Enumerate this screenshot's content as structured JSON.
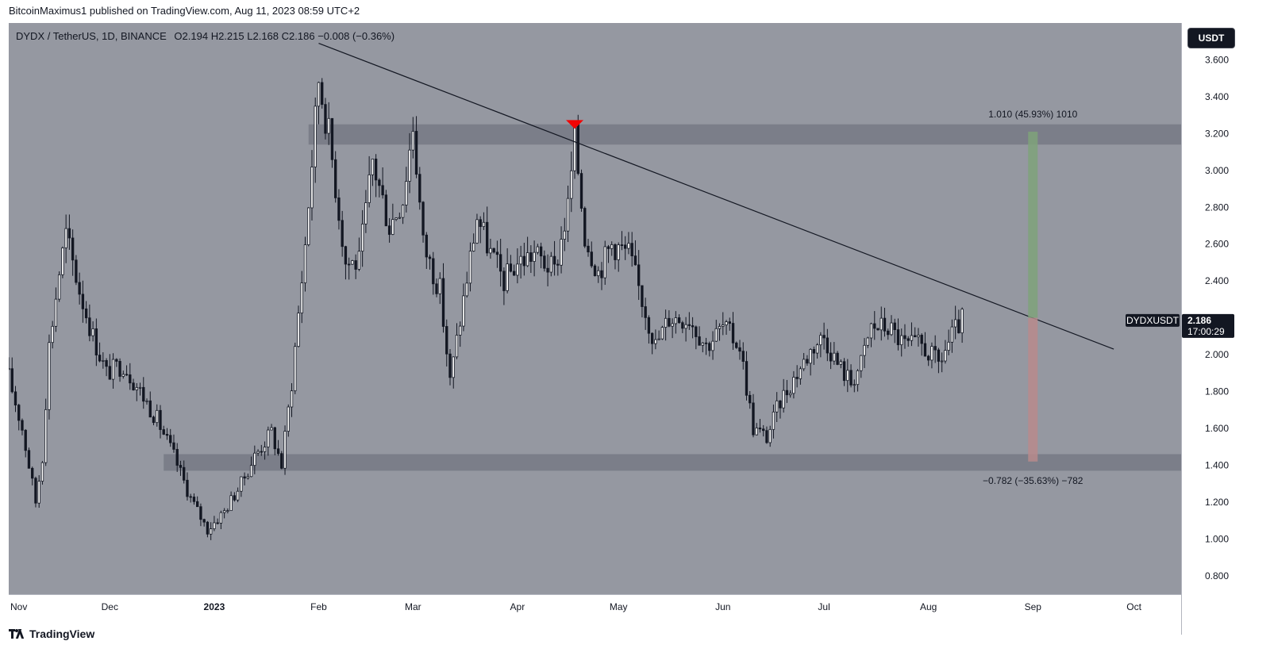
{
  "header": {
    "published": "BitcoinMaximus1 published on TradingView.com, Aug 11, 2023 08:59 UTC+2"
  },
  "legend": {
    "symbol": "DYDX / TetherUS, 1D, BINANCE",
    "open_label": "O",
    "open": "2.194",
    "high_label": "H",
    "high": "2.215",
    "low_label": "L",
    "low": "2.168",
    "close_label": "C",
    "close": "2.186",
    "change": "−0.008 (−0.36%)"
  },
  "currency_button": "USDT",
  "price_label": {
    "symbol": "DYDXUSDT",
    "price": "2.186",
    "countdown": "17:00:29"
  },
  "colors": {
    "plot_bg": "#9598a1",
    "zone": "#787b86",
    "candle": "#131722",
    "long_target": "#7fa27a",
    "short_target": "#b98a8c",
    "marker": "#f20505"
  },
  "footer": {
    "brand": "TradingView",
    "logo_icon": "tradingview-logo-icon"
  },
  "chart_data": {
    "type": "candlestick",
    "timeframe": "1D",
    "x_axis_ticks": [
      "Nov",
      "Dec",
      "2023",
      "Feb",
      "Mar",
      "Apr",
      "May",
      "Jun",
      "Jul",
      "Aug",
      "Sep",
      "Oct"
    ],
    "y_axis_ticks": [
      "3.600",
      "3.400",
      "3.200",
      "3.000",
      "2.800",
      "2.600",
      "2.400",
      "2.200",
      "2.000",
      "1.800",
      "1.600",
      "1.400",
      "1.200",
      "1.000",
      "0.800"
    ],
    "y_range": [
      0.7,
      3.8
    ],
    "x_range": [
      "2022-11-01",
      "2023-10-15"
    ],
    "last_price": 2.186,
    "resistance_zone": [
      3.14,
      3.25
    ],
    "support_zone": [
      1.37,
      1.46
    ],
    "trendline": {
      "start": [
        "2023-02-01",
        3.69
      ],
      "end": [
        "2023-09-25",
        2.03
      ]
    },
    "rejection_marker": {
      "date": "2023-04-18",
      "price": 3.23
    },
    "projections": [
      {
        "label": "1.010 (45.93%) 1010",
        "date": "2023-09-01",
        "from": 2.2,
        "to": 3.21
      },
      {
        "label": "−0.782 (−35.63%) −782",
        "date": "2023-09-01",
        "from": 2.2,
        "to": 1.42
      }
    ],
    "price_path": [
      [
        "2022-11-01",
        1.88
      ],
      [
        "2022-11-05",
        1.6
      ],
      [
        "2022-11-09",
        1.2
      ],
      [
        "2022-11-11",
        1.45
      ],
      [
        "2022-11-13",
        2.05
      ],
      [
        "2022-11-16",
        2.45
      ],
      [
        "2022-11-18",
        2.65
      ],
      [
        "2022-11-22",
        2.35
      ],
      [
        "2022-11-26",
        2.1
      ],
      [
        "2022-11-30",
        1.9
      ],
      [
        "2022-12-05",
        1.95
      ],
      [
        "2022-12-10",
        1.8
      ],
      [
        "2022-12-15",
        1.65
      ],
      [
        "2022-12-20",
        1.45
      ],
      [
        "2022-12-25",
        1.22
      ],
      [
        "2022-12-30",
        1.05
      ],
      [
        "2023-01-04",
        1.15
      ],
      [
        "2023-01-09",
        1.3
      ],
      [
        "2023-01-13",
        1.45
      ],
      [
        "2023-01-18",
        1.58
      ],
      [
        "2023-01-21",
        1.4
      ],
      [
        "2023-01-24",
        1.85
      ],
      [
        "2023-01-28",
        2.6
      ],
      [
        "2023-02-01",
        3.5
      ],
      [
        "2023-02-04",
        3.2
      ],
      [
        "2023-02-09",
        2.5
      ],
      [
        "2023-02-13",
        2.5
      ],
      [
        "2023-02-17",
        3.05
      ],
      [
        "2023-02-22",
        2.7
      ],
      [
        "2023-02-26",
        2.85
      ],
      [
        "2023-03-01",
        3.25
      ],
      [
        "2023-03-04",
        2.6
      ],
      [
        "2023-03-09",
        2.35
      ],
      [
        "2023-03-12",
        1.85
      ],
      [
        "2023-03-16",
        2.3
      ],
      [
        "2023-03-20",
        2.75
      ],
      [
        "2023-03-24",
        2.55
      ],
      [
        "2023-03-28",
        2.4
      ],
      [
        "2023-04-01",
        2.5
      ],
      [
        "2023-04-06",
        2.55
      ],
      [
        "2023-04-12",
        2.45
      ],
      [
        "2023-04-16",
        2.8
      ],
      [
        "2023-04-18",
        3.18
      ],
      [
        "2023-04-21",
        2.65
      ],
      [
        "2023-04-25",
        2.45
      ],
      [
        "2023-04-29",
        2.6
      ],
      [
        "2023-05-04",
        2.55
      ],
      [
        "2023-05-08",
        2.3
      ],
      [
        "2023-05-12",
        2.05
      ],
      [
        "2023-05-16",
        2.2
      ],
      [
        "2023-05-22",
        2.2
      ],
      [
        "2023-05-27",
        2.05
      ],
      [
        "2023-06-01",
        2.15
      ],
      [
        "2023-06-06",
        2.05
      ],
      [
        "2023-06-10",
        1.6
      ],
      [
        "2023-06-14",
        1.55
      ],
      [
        "2023-06-18",
        1.75
      ],
      [
        "2023-06-23",
        1.9
      ],
      [
        "2023-06-28",
        2.05
      ],
      [
        "2023-07-01",
        2.1
      ],
      [
        "2023-07-05",
        1.95
      ],
      [
        "2023-07-09",
        1.85
      ],
      [
        "2023-07-12",
        1.95
      ],
      [
        "2023-07-15",
        2.15
      ],
      [
        "2023-07-20",
        2.15
      ],
      [
        "2023-07-25",
        2.05
      ],
      [
        "2023-07-30",
        2.05
      ],
      [
        "2023-08-04",
        1.95
      ],
      [
        "2023-08-08",
        2.1
      ],
      [
        "2023-08-11",
        2.186
      ]
    ]
  }
}
